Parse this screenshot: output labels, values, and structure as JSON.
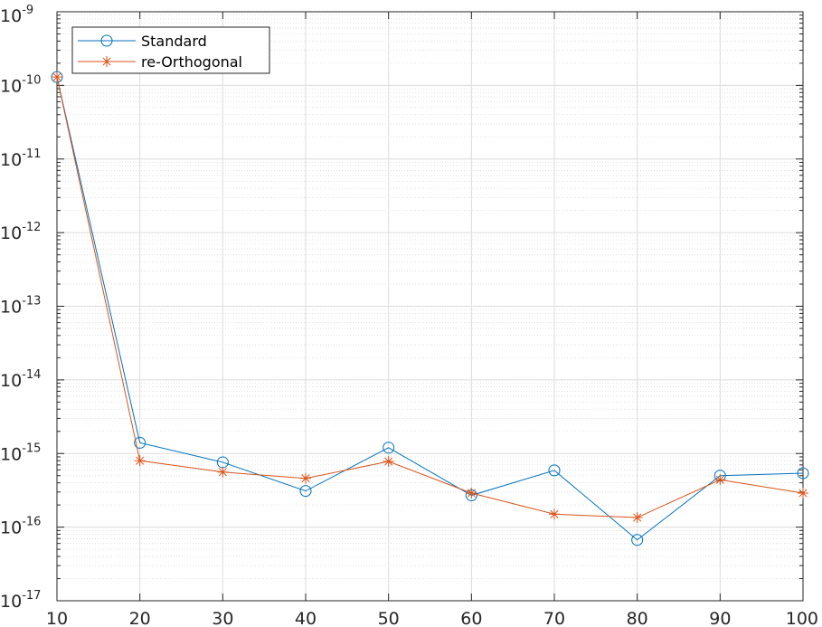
{
  "chart_data": {
    "type": "line",
    "title": "",
    "xlabel": "",
    "ylabel": "",
    "xscale": "linear",
    "yscale": "log",
    "xlim": [
      10,
      100
    ],
    "ylim": [
      1e-17,
      1e-09
    ],
    "grid": true,
    "minor_grid": true,
    "legend_position": "top-left",
    "x_ticks": [
      "10",
      "20",
      "30",
      "40",
      "50",
      "60",
      "70",
      "80",
      "90",
      "100"
    ],
    "y_ticks": [
      {
        "value": 1e-17,
        "base": "10",
        "exp": "-17"
      },
      {
        "value": 1e-16,
        "base": "10",
        "exp": "-16"
      },
      {
        "value": 1e-15,
        "base": "10",
        "exp": "-15"
      },
      {
        "value": 1e-14,
        "base": "10",
        "exp": "-14"
      },
      {
        "value": 1e-13,
        "base": "10",
        "exp": "-13"
      },
      {
        "value": 1e-12,
        "base": "10",
        "exp": "-12"
      },
      {
        "value": 1e-11,
        "base": "10",
        "exp": "-11"
      },
      {
        "value": 1e-10,
        "base": "10",
        "exp": "-10"
      },
      {
        "value": 1e-09,
        "base": "10",
        "exp": "-9"
      }
    ],
    "x": [
      10,
      20,
      30,
      40,
      50,
      60,
      70,
      80,
      90,
      100
    ],
    "series": [
      {
        "name": "Standard",
        "color": "#0072BD",
        "marker": "circle",
        "values": [
          1.3e-10,
          1.4e-15,
          7.6e-16,
          3.1e-16,
          1.2e-15,
          2.7e-16,
          5.9e-16,
          6.7e-17,
          5e-16,
          5.4e-16
        ]
      },
      {
        "name": "re-Orthogonal",
        "color": "#D95319",
        "marker": "asterisk",
        "values": [
          1.3e-10,
          8e-16,
          5.6e-16,
          4.6e-16,
          7.8e-16,
          2.9e-16,
          1.5e-16,
          1.35e-16,
          4.4e-16,
          2.9e-16
        ]
      }
    ]
  }
}
